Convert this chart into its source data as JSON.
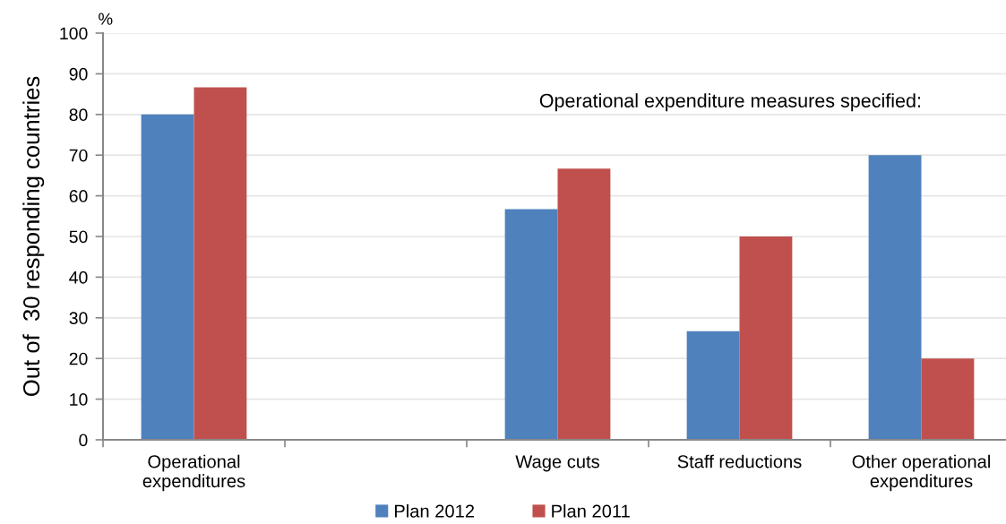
{
  "chart_data": {
    "type": "bar",
    "ylabel": "Out of  30 responding countries",
    "annotations": [
      "%",
      "Operational expenditure measures specified:"
    ],
    "categories": [
      "Operational\nexpenditures",
      null,
      "Wage cuts",
      "Staff reductions",
      "Other operational\nexpenditures"
    ],
    "series": [
      {
        "name": "Plan 2012",
        "color": "#4f81bd",
        "values": [
          80,
          null,
          56.7,
          26.7,
          70
        ]
      },
      {
        "name": "Plan 2011",
        "color": "#c0504d",
        "values": [
          86.7,
          null,
          66.7,
          50,
          20
        ]
      }
    ],
    "ylim": [
      0,
      100
    ],
    "yticks": [
      0,
      10,
      20,
      30,
      40,
      50,
      60,
      70,
      80,
      90,
      100
    ],
    "grid": "y",
    "legend": "bottom"
  }
}
